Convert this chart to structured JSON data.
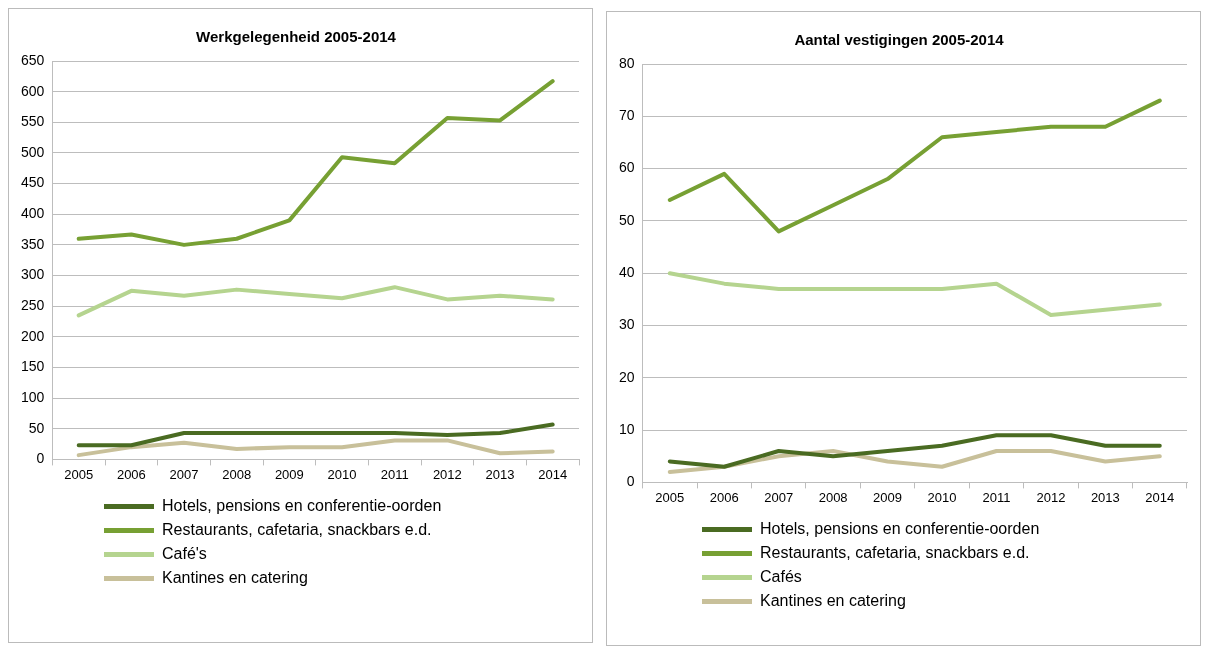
{
  "chart_data": [
    {
      "type": "line",
      "title": "Werkgelegenheid 2005-2014",
      "categories": [
        "2005",
        "2006",
        "2007",
        "2008",
        "2009",
        "2010",
        "2011",
        "2012",
        "2013",
        "2014"
      ],
      "ylim": [
        0,
        650
      ],
      "yticks": [
        0,
        50,
        100,
        150,
        200,
        250,
        300,
        350,
        400,
        450,
        500,
        550,
        600,
        650
      ],
      "grid": "y",
      "legend": "bottom",
      "marker": "none",
      "series": [
        {
          "name": "Hotels, pensions en conferentie-oorden",
          "color": "#4a6b22",
          "values": [
            23,
            23,
            43,
            43,
            43,
            43,
            43,
            40,
            43,
            57
          ]
        },
        {
          "name": "Restaurants, cafetaria, snackbars e.d.",
          "color": "#77a033",
          "values": [
            360,
            367,
            350,
            360,
            390,
            493,
            483,
            557,
            553,
            617
          ]
        },
        {
          "name": "Café's",
          "color": "#b5d48f",
          "values": [
            235,
            275,
            267,
            277,
            270,
            263,
            281,
            261,
            267,
            261
          ]
        },
        {
          "name": "Kantines en catering",
          "color": "#c8c09a",
          "values": [
            7,
            20,
            27,
            17,
            20,
            20,
            31,
            31,
            10,
            13
          ]
        }
      ]
    },
    {
      "type": "line",
      "title": "Aantal vestigingen 2005-2014",
      "categories": [
        "2005",
        "2006",
        "2007",
        "2008",
        "2009",
        "2010",
        "2011",
        "2012",
        "2013",
        "2014"
      ],
      "ylim": [
        0,
        80
      ],
      "yticks": [
        0,
        10,
        20,
        30,
        40,
        50,
        60,
        70,
        80
      ],
      "grid": "y",
      "legend": "bottom",
      "marker": "none",
      "series": [
        {
          "name": "Hotels, pensions en conferentie-oorden",
          "color": "#4a6b22",
          "values": [
            4,
            3,
            6,
            5,
            6,
            7,
            9,
            9,
            7,
            7
          ]
        },
        {
          "name": "Restaurants, cafetaria, snackbars e.d.",
          "color": "#77a033",
          "values": [
            54,
            59,
            48,
            53,
            58,
            66,
            67,
            68,
            68,
            73
          ]
        },
        {
          "name": "Cafés",
          "color": "#b5d48f",
          "values": [
            40,
            38,
            37,
            37,
            37,
            37,
            38,
            32,
            33,
            34
          ]
        },
        {
          "name": "Kantines en catering",
          "color": "#c8c09a",
          "values": [
            2,
            3,
            5,
            6,
            4,
            3,
            6,
            6,
            4,
            5
          ]
        }
      ]
    }
  ]
}
